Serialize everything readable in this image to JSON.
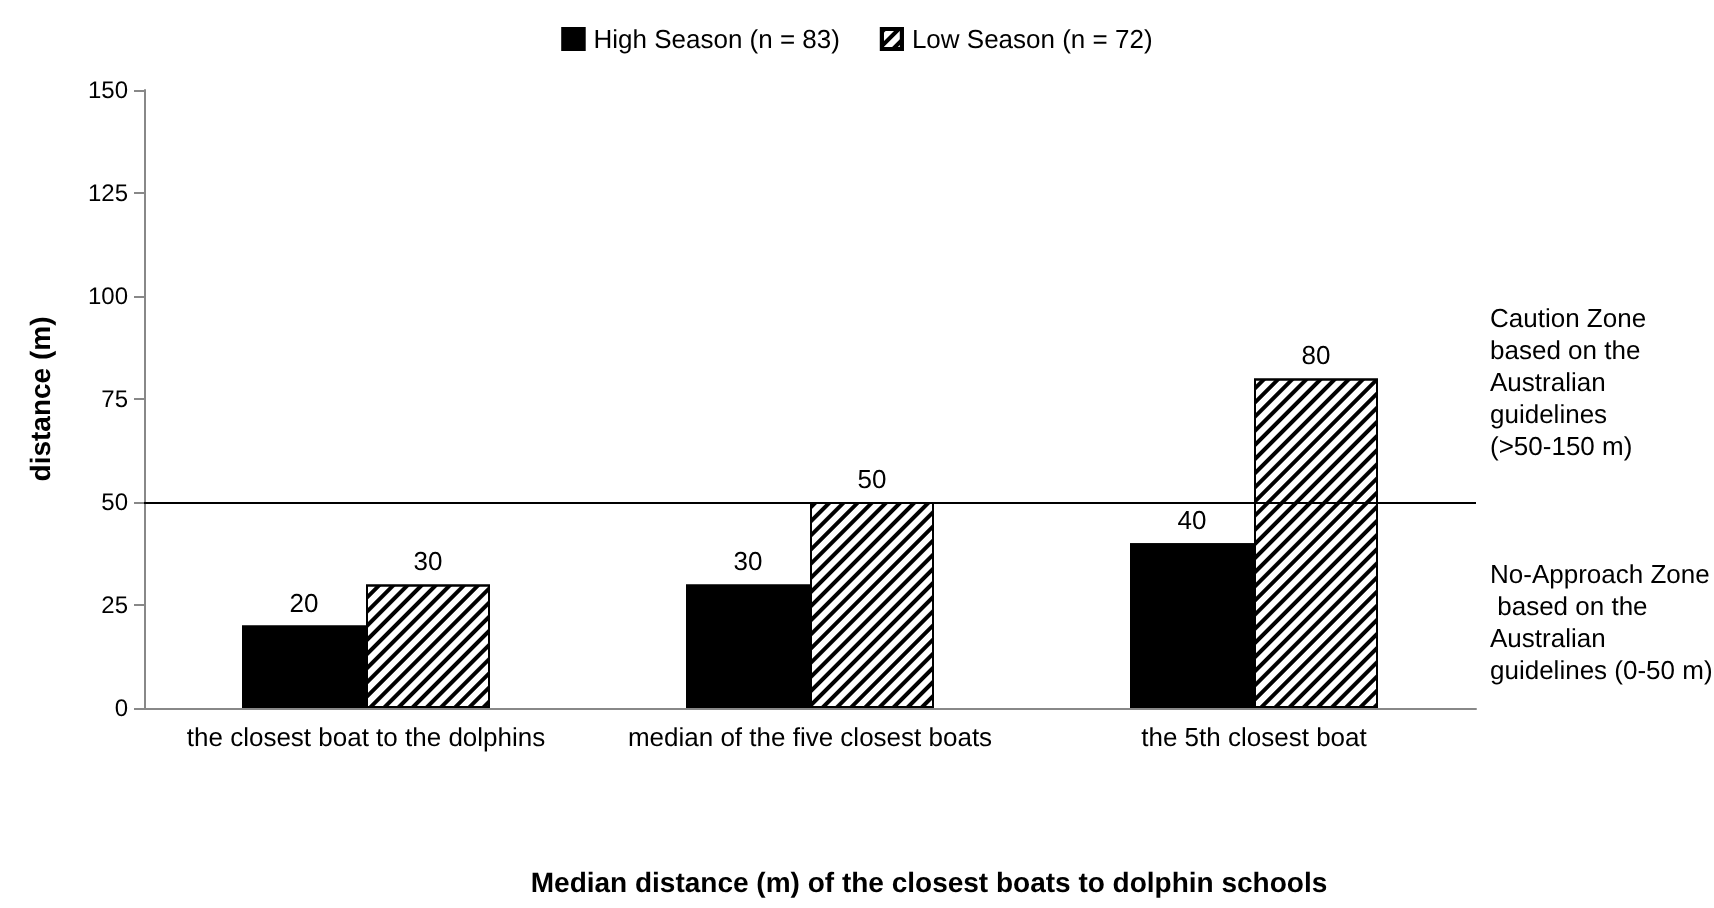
{
  "chart_data": {
    "type": "bar",
    "xlabel": "Median distance (m) of the closest boats to dolphin schools",
    "ylabel": "distance (m)",
    "categories": [
      "the closest boat to the dolphins",
      "median of the five closest boats",
      "the 5th closest boat"
    ],
    "series": [
      {
        "name": "High Season (n = 83)",
        "color": "#000000",
        "values": [
          20,
          30,
          40
        ]
      },
      {
        "name": "Low Season (n = 72)",
        "color": "#ffffff",
        "values": [
          30,
          50,
          80
        ]
      }
    ],
    "ylim": [
      0,
      150
    ],
    "yticks": [
      0,
      25,
      50,
      75,
      100,
      125,
      150
    ],
    "grid": false,
    "legend": "top",
    "data_labels": true,
    "ref_lines": [
      {
        "axis": "y",
        "value": 50,
        "color": "#000000"
      }
    ],
    "annotations": [
      "Caution Zone based on the Australian guidelines (>50-150 m)",
      "No-Approach Zone based on the Australian guidelines (0-50 m)"
    ]
  }
}
